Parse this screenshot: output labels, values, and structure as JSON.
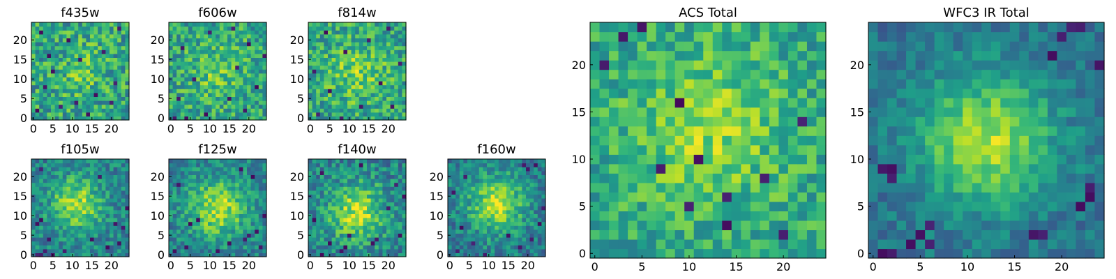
{
  "chart_data": [
    {
      "type": "heatmap",
      "title": "f435w",
      "grid_size": 25,
      "colormap": "viridis",
      "xticks": [
        0,
        5,
        10,
        15,
        20
      ],
      "yticks": [
        0,
        5,
        10,
        15,
        20
      ],
      "center": [
        12,
        12
      ],
      "sigma": 5.0,
      "peak": 0.12,
      "base": 0.58,
      "noise": 0.24,
      "dark_pixels": [
        [
          1,
          2
        ],
        [
          7,
          3
        ],
        [
          11,
          4
        ],
        [
          20,
          4
        ],
        [
          16,
          6
        ],
        [
          3,
          8
        ],
        [
          21,
          9
        ],
        [
          5,
          12
        ],
        [
          12,
          15
        ],
        [
          18,
          17
        ],
        [
          9,
          20
        ],
        [
          2,
          22
        ],
        [
          22,
          23
        ],
        [
          14,
          1
        ],
        [
          4,
          16
        ]
      ],
      "seed": 11
    },
    {
      "type": "heatmap",
      "title": "f606w",
      "grid_size": 25,
      "colormap": "viridis",
      "xticks": [
        0,
        5,
        10,
        15,
        20
      ],
      "yticks": [
        0,
        5,
        10,
        15,
        20
      ],
      "center": [
        12,
        12
      ],
      "sigma": 5.5,
      "peak": 0.16,
      "base": 0.58,
      "noise": 0.22,
      "dark_pixels": [
        [
          1,
          0
        ],
        [
          4,
          0
        ],
        [
          9,
          1
        ],
        [
          19,
          2
        ],
        [
          2,
          5
        ],
        [
          15,
          5
        ],
        [
          22,
          8
        ],
        [
          6,
          10
        ],
        [
          17,
          13
        ],
        [
          3,
          18
        ],
        [
          20,
          19
        ],
        [
          10,
          22
        ],
        [
          16,
          23
        ],
        [
          24,
          16
        ]
      ],
      "seed": 23
    },
    {
      "type": "heatmap",
      "title": "f814w",
      "grid_size": 25,
      "colormap": "viridis",
      "xticks": [
        0,
        5,
        10,
        15,
        20
      ],
      "yticks": [
        0,
        5,
        10,
        15,
        20
      ],
      "center": [
        12,
        12
      ],
      "sigma": 5.5,
      "peak": 0.2,
      "base": 0.58,
      "noise": 0.22,
      "dark_pixels": [
        [
          2,
          1
        ],
        [
          8,
          0
        ],
        [
          13,
          3
        ],
        [
          21,
          3
        ],
        [
          5,
          7
        ],
        [
          18,
          9
        ],
        [
          1,
          12
        ],
        [
          23,
          14
        ],
        [
          9,
          17
        ],
        [
          15,
          20
        ],
        [
          4,
          22
        ],
        [
          20,
          23
        ]
      ],
      "seed": 37
    },
    {
      "type": "heatmap",
      "title": "f105w",
      "grid_size": 25,
      "colormap": "viridis",
      "xticks": [
        0,
        5,
        10,
        15,
        20
      ],
      "yticks": [
        0,
        5,
        10,
        15,
        20
      ],
      "center": [
        11,
        13
      ],
      "sigma": 4.5,
      "peak": 0.42,
      "base": 0.45,
      "noise": 0.18,
      "dark_pixels": [
        [
          1,
          0
        ],
        [
          2,
          0
        ],
        [
          5,
          0
        ],
        [
          3,
          1
        ],
        [
          4,
          4
        ],
        [
          1,
          8
        ],
        [
          2,
          9
        ],
        [
          19,
          2
        ],
        [
          22,
          3
        ],
        [
          21,
          8
        ],
        [
          23,
          7
        ],
        [
          17,
          20
        ],
        [
          2,
          22
        ],
        [
          8,
          1
        ],
        [
          15,
          4
        ],
        [
          24,
          12
        ]
      ],
      "seed": 41
    },
    {
      "type": "heatmap",
      "title": "f125w",
      "grid_size": 25,
      "colormap": "viridis",
      "xticks": [
        0,
        5,
        10,
        15,
        20
      ],
      "yticks": [
        0,
        5,
        10,
        15,
        20
      ],
      "center": [
        12,
        12
      ],
      "sigma": 5.0,
      "peak": 0.45,
      "base": 0.45,
      "noise": 0.18,
      "dark_pixels": [
        [
          1,
          1
        ],
        [
          4,
          2
        ],
        [
          12,
          1
        ],
        [
          19,
          4
        ],
        [
          20,
          5
        ],
        [
          22,
          6
        ],
        [
          5,
          8
        ],
        [
          7,
          9
        ],
        [
          23,
          2
        ],
        [
          2,
          18
        ],
        [
          21,
          20
        ],
        [
          15,
          3
        ],
        [
          18,
          22
        ],
        [
          24,
          10
        ]
      ],
      "seed": 53
    },
    {
      "type": "heatmap",
      "title": "f140w",
      "grid_size": 25,
      "colormap": "viridis",
      "xticks": [
        0,
        5,
        10,
        15,
        20
      ],
      "yticks": [
        0,
        5,
        10,
        15,
        20
      ],
      "center": [
        12,
        11
      ],
      "sigma": 5.0,
      "peak": 0.45,
      "base": 0.45,
      "noise": 0.2,
      "dark_pixels": [
        [
          3,
          0
        ],
        [
          8,
          1
        ],
        [
          9,
          2
        ],
        [
          5,
          3
        ],
        [
          16,
          3
        ],
        [
          17,
          4
        ],
        [
          23,
          5
        ],
        [
          1,
          9
        ],
        [
          20,
          12
        ],
        [
          24,
          15
        ],
        [
          22,
          18
        ],
        [
          3,
          21
        ],
        [
          13,
          23
        ],
        [
          10,
          5
        ]
      ],
      "seed": 67
    },
    {
      "type": "heatmap",
      "title": "f160w",
      "grid_size": 25,
      "colormap": "viridis",
      "xticks": [
        0,
        5,
        10,
        15,
        20
      ],
      "yticks": [
        0,
        5,
        10,
        15,
        20
      ],
      "center": [
        12,
        13
      ],
      "sigma": 5.0,
      "peak": 0.48,
      "base": 0.42,
      "noise": 0.18,
      "dark_pixels": [
        [
          2,
          1
        ],
        [
          6,
          3
        ],
        [
          18,
          2
        ],
        [
          21,
          4
        ],
        [
          3,
          7
        ],
        [
          23,
          8
        ],
        [
          19,
          23
        ],
        [
          20,
          22
        ],
        [
          22,
          23
        ],
        [
          1,
          16
        ],
        [
          9,
          0
        ],
        [
          15,
          5
        ],
        [
          24,
          12
        ],
        [
          4,
          20
        ]
      ],
      "seed": 79
    },
    {
      "type": "heatmap",
      "title": "ACS Total",
      "grid_size": 25,
      "colormap": "viridis",
      "xticks": [
        0,
        5,
        10,
        15,
        20
      ],
      "yticks": [
        0,
        5,
        10,
        15,
        20
      ],
      "center": [
        12,
        13
      ],
      "sigma": 5.5,
      "peak": 0.22,
      "base": 0.6,
      "noise": 0.18,
      "dark_pixels": [
        [
          1,
          20
        ],
        [
          3,
          23
        ],
        [
          7,
          9
        ],
        [
          18,
          8
        ],
        [
          14,
          6
        ],
        [
          10,
          5
        ],
        [
          14,
          3
        ],
        [
          20,
          2
        ],
        [
          22,
          14
        ],
        [
          5,
          24
        ],
        [
          9,
          16
        ],
        [
          11,
          10
        ]
      ],
      "seed": 97
    },
    {
      "type": "heatmap",
      "title": "WFC3 IR Total",
      "grid_size": 25,
      "colormap": "viridis",
      "xticks": [
        0,
        5,
        10,
        15,
        20
      ],
      "yticks": [
        0,
        5,
        10,
        15,
        20
      ],
      "center": [
        12,
        12
      ],
      "sigma": 5.0,
      "peak": 0.5,
      "base": 0.38,
      "noise": 0.12,
      "dark_pixels": [
        [
          2,
          8
        ],
        [
          2,
          9
        ],
        [
          1,
          9
        ],
        [
          5,
          2
        ],
        [
          6,
          1
        ],
        [
          4,
          1
        ],
        [
          6,
          3
        ],
        [
          2,
          0
        ],
        [
          17,
          2
        ],
        [
          18,
          2
        ],
        [
          23,
          6
        ],
        [
          23,
          7
        ],
        [
          22,
          5
        ],
        [
          24,
          20
        ],
        [
          20,
          23
        ],
        [
          21,
          24
        ],
        [
          22,
          24
        ],
        [
          19,
          21
        ],
        [
          1,
          0
        ]
      ],
      "seed": 113
    }
  ]
}
